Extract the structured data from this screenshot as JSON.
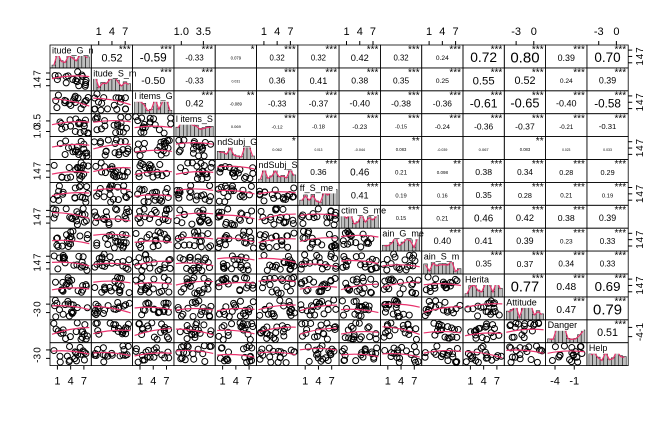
{
  "chart_data": {
    "type": "correlation_matrix",
    "variables": [
      "itude_G_n",
      "itude_S_m",
      "l items_G",
      "l items_S",
      "ndSubj_G",
      "ndSubj_S",
      "ff_S_me",
      "ctim_S_me",
      "ain_G_me",
      "ain_S_m",
      "Herita",
      "Attitude",
      "Danger",
      "Help"
    ],
    "ticks": [
      [
        1,
        4,
        7
      ],
      [
        1,
        4,
        7
      ],
      [
        1,
        4,
        7
      ],
      [
        {
          "value": 1,
          "label": "1.0"
        },
        3.5
      ],
      [
        1,
        4,
        7
      ],
      [
        1,
        4,
        7
      ],
      [
        1,
        4,
        7
      ],
      [
        1,
        4,
        7
      ],
      [
        1,
        4,
        7
      ],
      [
        1,
        4,
        7
      ],
      [
        1,
        4,
        7
      ],
      [
        -3,
        0
      ],
      [
        -4,
        -1
      ],
      [
        -3,
        0
      ]
    ],
    "lims": [
      [
        0,
        8
      ],
      [
        0,
        8
      ],
      [
        0,
        8
      ],
      [
        0.5,
        4.5
      ],
      [
        0,
        8
      ],
      [
        0,
        8
      ],
      [
        0,
        8
      ],
      [
        0,
        8
      ],
      [
        0,
        8
      ],
      [
        0,
        8
      ],
      [
        0,
        8
      ],
      [
        -4.5,
        1.5
      ],
      [
        -5,
        0.5
      ],
      [
        -4.5,
        1.5
      ]
    ],
    "correlations": [
      [
        0.52,
        -0.59,
        -0.33,
        0.079,
        0.32,
        0.32,
        0.42,
        0.32,
        0.24,
        0.72,
        0.8,
        0.39,
        0.7
      ],
      [
        -0.5,
        -0.33,
        0.031,
        0.36,
        0.41,
        0.38,
        0.35,
        0.25,
        0.55,
        0.52,
        0.24,
        0.39
      ],
      [
        0.42,
        -0.089,
        -0.33,
        -0.37,
        -0.4,
        -0.38,
        -0.36,
        -0.61,
        -0.65,
        -0.4,
        -0.58
      ],
      [
        0.069,
        -0.12,
        -0.18,
        -0.23,
        -0.15,
        -0.24,
        -0.36,
        -0.37,
        -0.21,
        -0.31
      ],
      [
        0.062,
        0.013,
        -0.044,
        0.083,
        -0.039,
        0.067,
        0.083,
        0.023,
        0.033
      ],
      [
        0.36,
        0.46,
        0.21,
        0.098,
        0.38,
        0.34,
        0.28,
        0.29
      ],
      [
        0.41,
        0.19,
        0.16,
        0.35,
        0.28,
        0.21,
        0.19
      ],
      [
        0.15,
        0.21,
        0.46,
        0.42,
        0.38,
        0.39
      ],
      [
        0.4,
        0.41,
        0.39,
        0.23,
        0.33
      ],
      [
        0.35,
        0.37,
        0.34,
        0.33
      ],
      [
        0.77,
        0.48,
        0.69
      ],
      [
        0.47,
        0.79
      ],
      [
        0.51
      ]
    ],
    "value_labels": [
      [
        "0.52",
        "-0.59",
        "-0.33",
        "0.079",
        "0.32",
        "0.32",
        "0.42",
        "0.32",
        "0.24",
        "0.72",
        "0.80",
        "0.39",
        "0.70"
      ],
      [
        "-0.50",
        "-0.33",
        "0.031",
        "0.36",
        "0.41",
        "0.38",
        "0.35",
        "0.25",
        "0.55",
        "0.52",
        "0.24",
        "0.39"
      ],
      [
        "0.42",
        "-0.089",
        "-0.33",
        "-0.37",
        "-0.40",
        "-0.38",
        "-0.36",
        "-0.61",
        "-0.65",
        "-0.40",
        "-0.58"
      ],
      [
        "0.069",
        "-0.12",
        "-0.18",
        "-0.23",
        "-0.15",
        "-0.24",
        "-0.36",
        "-0.37",
        "-0.21",
        "-0.31"
      ],
      [
        "0.062",
        "0.013",
        "-0.044",
        "0.083",
        "-0.039",
        "0.067",
        "0.083",
        "0.023",
        "0.033"
      ],
      [
        "0.36",
        "0.46",
        "0.21",
        "0.098",
        "0.38",
        "0.34",
        "0.28",
        "0.29"
      ],
      [
        "0.41",
        "0.19",
        "0.16",
        "0.35",
        "0.28",
        "0.21",
        "0.19"
      ],
      [
        "0.15",
        "0.21",
        "0.46",
        "0.42",
        "0.38",
        "0.39"
      ],
      [
        "0.40",
        "0.41",
        "0.39",
        "0.23",
        "0.33"
      ],
      [
        "0.35",
        "0.37",
        "0.34",
        "0.33"
      ],
      [
        "0.77",
        "0.48",
        "0.69"
      ],
      [
        "0.47",
        "0.79"
      ],
      [
        "0.51"
      ]
    ],
    "significance": [
      [
        "***",
        "***",
        "***",
        "*",
        "***",
        "***",
        "***",
        "***",
        "***",
        "***",
        "***",
        "***",
        "***"
      ],
      [
        "***",
        "***",
        null,
        "***",
        "***",
        "***",
        "***",
        "***",
        "***",
        "***",
        "***",
        "***"
      ],
      [
        "***",
        "**",
        "***",
        "***",
        "***",
        "***",
        "***",
        "***",
        "***",
        "***",
        "***"
      ],
      [
        null,
        "***",
        "***",
        "***",
        "***",
        "***",
        "***",
        "***",
        "***",
        "***"
      ],
      [
        "*",
        null,
        null,
        "**",
        null,
        null,
        "**",
        null,
        null
      ],
      [
        "***",
        "***",
        "***",
        "**",
        "***",
        "***",
        "***",
        "***"
      ],
      [
        "***",
        "***",
        "**",
        "***",
        "***",
        "***",
        "***"
      ],
      [
        "***",
        "***",
        "***",
        "***",
        "***",
        "***"
      ],
      [
        "***",
        "***",
        "***",
        "***",
        "***"
      ],
      [
        "***",
        "***",
        "***",
        "***"
      ],
      [
        "***",
        "***",
        "***"
      ],
      [
        "***",
        "***"
      ],
      [
        "***"
      ]
    ],
    "star_color": "#e8336d",
    "fit_color": "#e8336d",
    "hist_color": "#bebebe"
  }
}
